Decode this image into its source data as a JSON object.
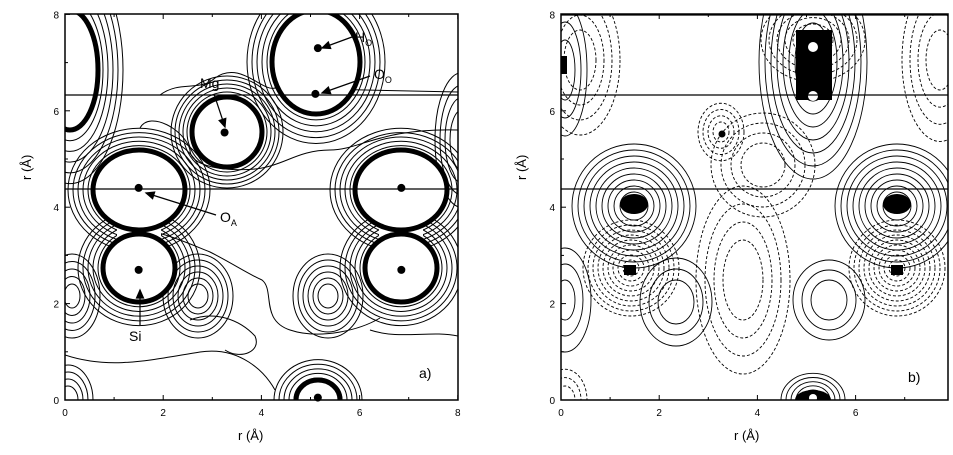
{
  "figure": {
    "panels": [
      {
        "label": "a)",
        "xlabel": "r (Å)",
        "ylabel": "r (Å)",
        "xticks": [
          "0",
          "2",
          "4",
          "6",
          "8"
        ],
        "yticks": [
          "0",
          "2",
          "4",
          "6",
          "8"
        ],
        "annotations": [
          {
            "text": "H",
            "sub": "O"
          },
          {
            "text": "O",
            "sub": "O"
          },
          {
            "text": "Mg",
            "sub": ""
          },
          {
            "text": "O",
            "sub": "A"
          },
          {
            "text": "Si",
            "sub": ""
          }
        ]
      },
      {
        "label": "b)",
        "xlabel": "r (Å)",
        "ylabel": "r (Å)",
        "xticks": [
          "0",
          "2",
          "4",
          "6"
        ],
        "yticks": [
          "0",
          "2",
          "4",
          "6",
          "8"
        ],
        "annotations": []
      }
    ]
  },
  "chart_data": [
    {
      "type": "contour",
      "panel": "a)",
      "xlabel": "r (Å)",
      "ylabel": "r (Å)",
      "xlim": [
        0,
        8
      ],
      "ylim": [
        0,
        8
      ],
      "line_style": "solid",
      "horizontal_lines_y": [
        6.35,
        4.4
      ],
      "atoms": [
        {
          "label": "Mg",
          "x": 3.25,
          "y": 5.55
        },
        {
          "label": "H_O",
          "x": 5.15,
          "y": 7.3
        },
        {
          "label": "O_O",
          "x": 5.1,
          "y": 6.35
        },
        {
          "label": "O_A",
          "x": 1.5,
          "y": 4.4
        },
        {
          "label": "Si",
          "x": 1.5,
          "y": 2.7
        },
        {
          "label": "",
          "x": 6.85,
          "y": 4.4
        },
        {
          "label": "",
          "x": 6.85,
          "y": 2.7
        },
        {
          "label": "",
          "x": 5.15,
          "y": 0.05
        }
      ]
    },
    {
      "type": "contour",
      "panel": "b)",
      "xlabel": "r (Å)",
      "ylabel": "r (Å)",
      "xlim": [
        0,
        7.9
      ],
      "ylim": [
        0,
        8
      ],
      "line_style": "solid positive / dashed negative",
      "horizontal_lines_y": [
        8.0,
        6.35,
        4.4
      ]
    }
  ]
}
